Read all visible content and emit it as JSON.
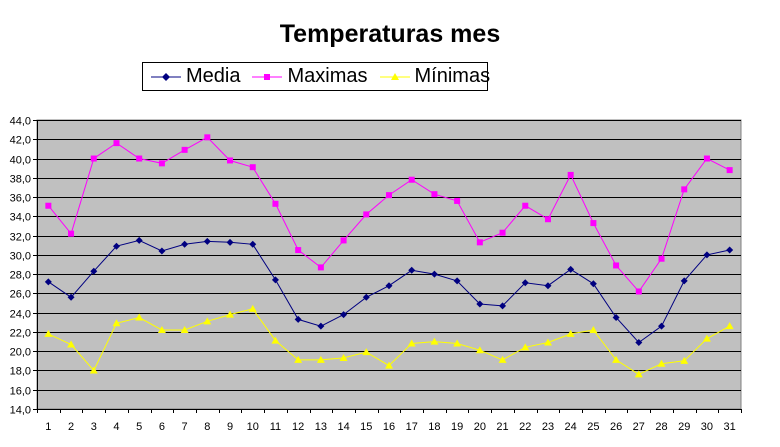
{
  "chart_data": {
    "type": "line",
    "title": "Temperaturas mes",
    "xlabel": "",
    "ylabel": "",
    "x": [
      1,
      2,
      3,
      4,
      5,
      6,
      7,
      8,
      9,
      10,
      11,
      12,
      13,
      14,
      15,
      16,
      17,
      18,
      19,
      20,
      21,
      22,
      23,
      24,
      25,
      26,
      27,
      28,
      29,
      30,
      31
    ],
    "ylim": [
      14.0,
      44.0
    ],
    "ytick_step": 2.0,
    "grid": true,
    "legend_position": "top",
    "plot_background": "#c0c0c0",
    "series": [
      {
        "name": "Media",
        "color": "#000080",
        "marker": "diamond",
        "values": [
          27.2,
          25.6,
          28.3,
          30.9,
          31.5,
          30.4,
          31.1,
          31.4,
          31.3,
          31.1,
          27.4,
          23.3,
          22.6,
          23.8,
          25.6,
          26.8,
          28.4,
          28.0,
          27.3,
          24.9,
          24.7,
          27.1,
          26.8,
          28.5,
          27.0,
          23.5,
          20.9,
          22.6,
          27.3,
          30.0,
          30.5
        ]
      },
      {
        "name": "Maximas",
        "color": "#ff00ff",
        "marker": "square",
        "values": [
          35.1,
          32.2,
          40.0,
          41.6,
          40.0,
          39.5,
          40.9,
          42.2,
          39.8,
          39.1,
          35.3,
          30.5,
          28.7,
          31.5,
          34.2,
          36.2,
          37.8,
          36.3,
          35.6,
          31.3,
          32.3,
          35.1,
          33.7,
          38.3,
          33.3,
          28.9,
          26.2,
          29.6,
          36.8,
          40.0,
          38.8
        ]
      },
      {
        "name": "Mínimas",
        "color": "#ffff00",
        "marker": "triangle",
        "values": [
          21.8,
          20.7,
          18.0,
          22.9,
          23.5,
          22.2,
          22.2,
          23.1,
          23.8,
          24.4,
          21.1,
          19.1,
          19.1,
          19.3,
          19.9,
          18.5,
          20.8,
          21.0,
          20.8,
          20.1,
          19.1,
          20.4,
          20.9,
          21.8,
          22.2,
          19.1,
          17.6,
          18.7,
          19.0,
          21.3,
          22.6
        ]
      }
    ]
  }
}
